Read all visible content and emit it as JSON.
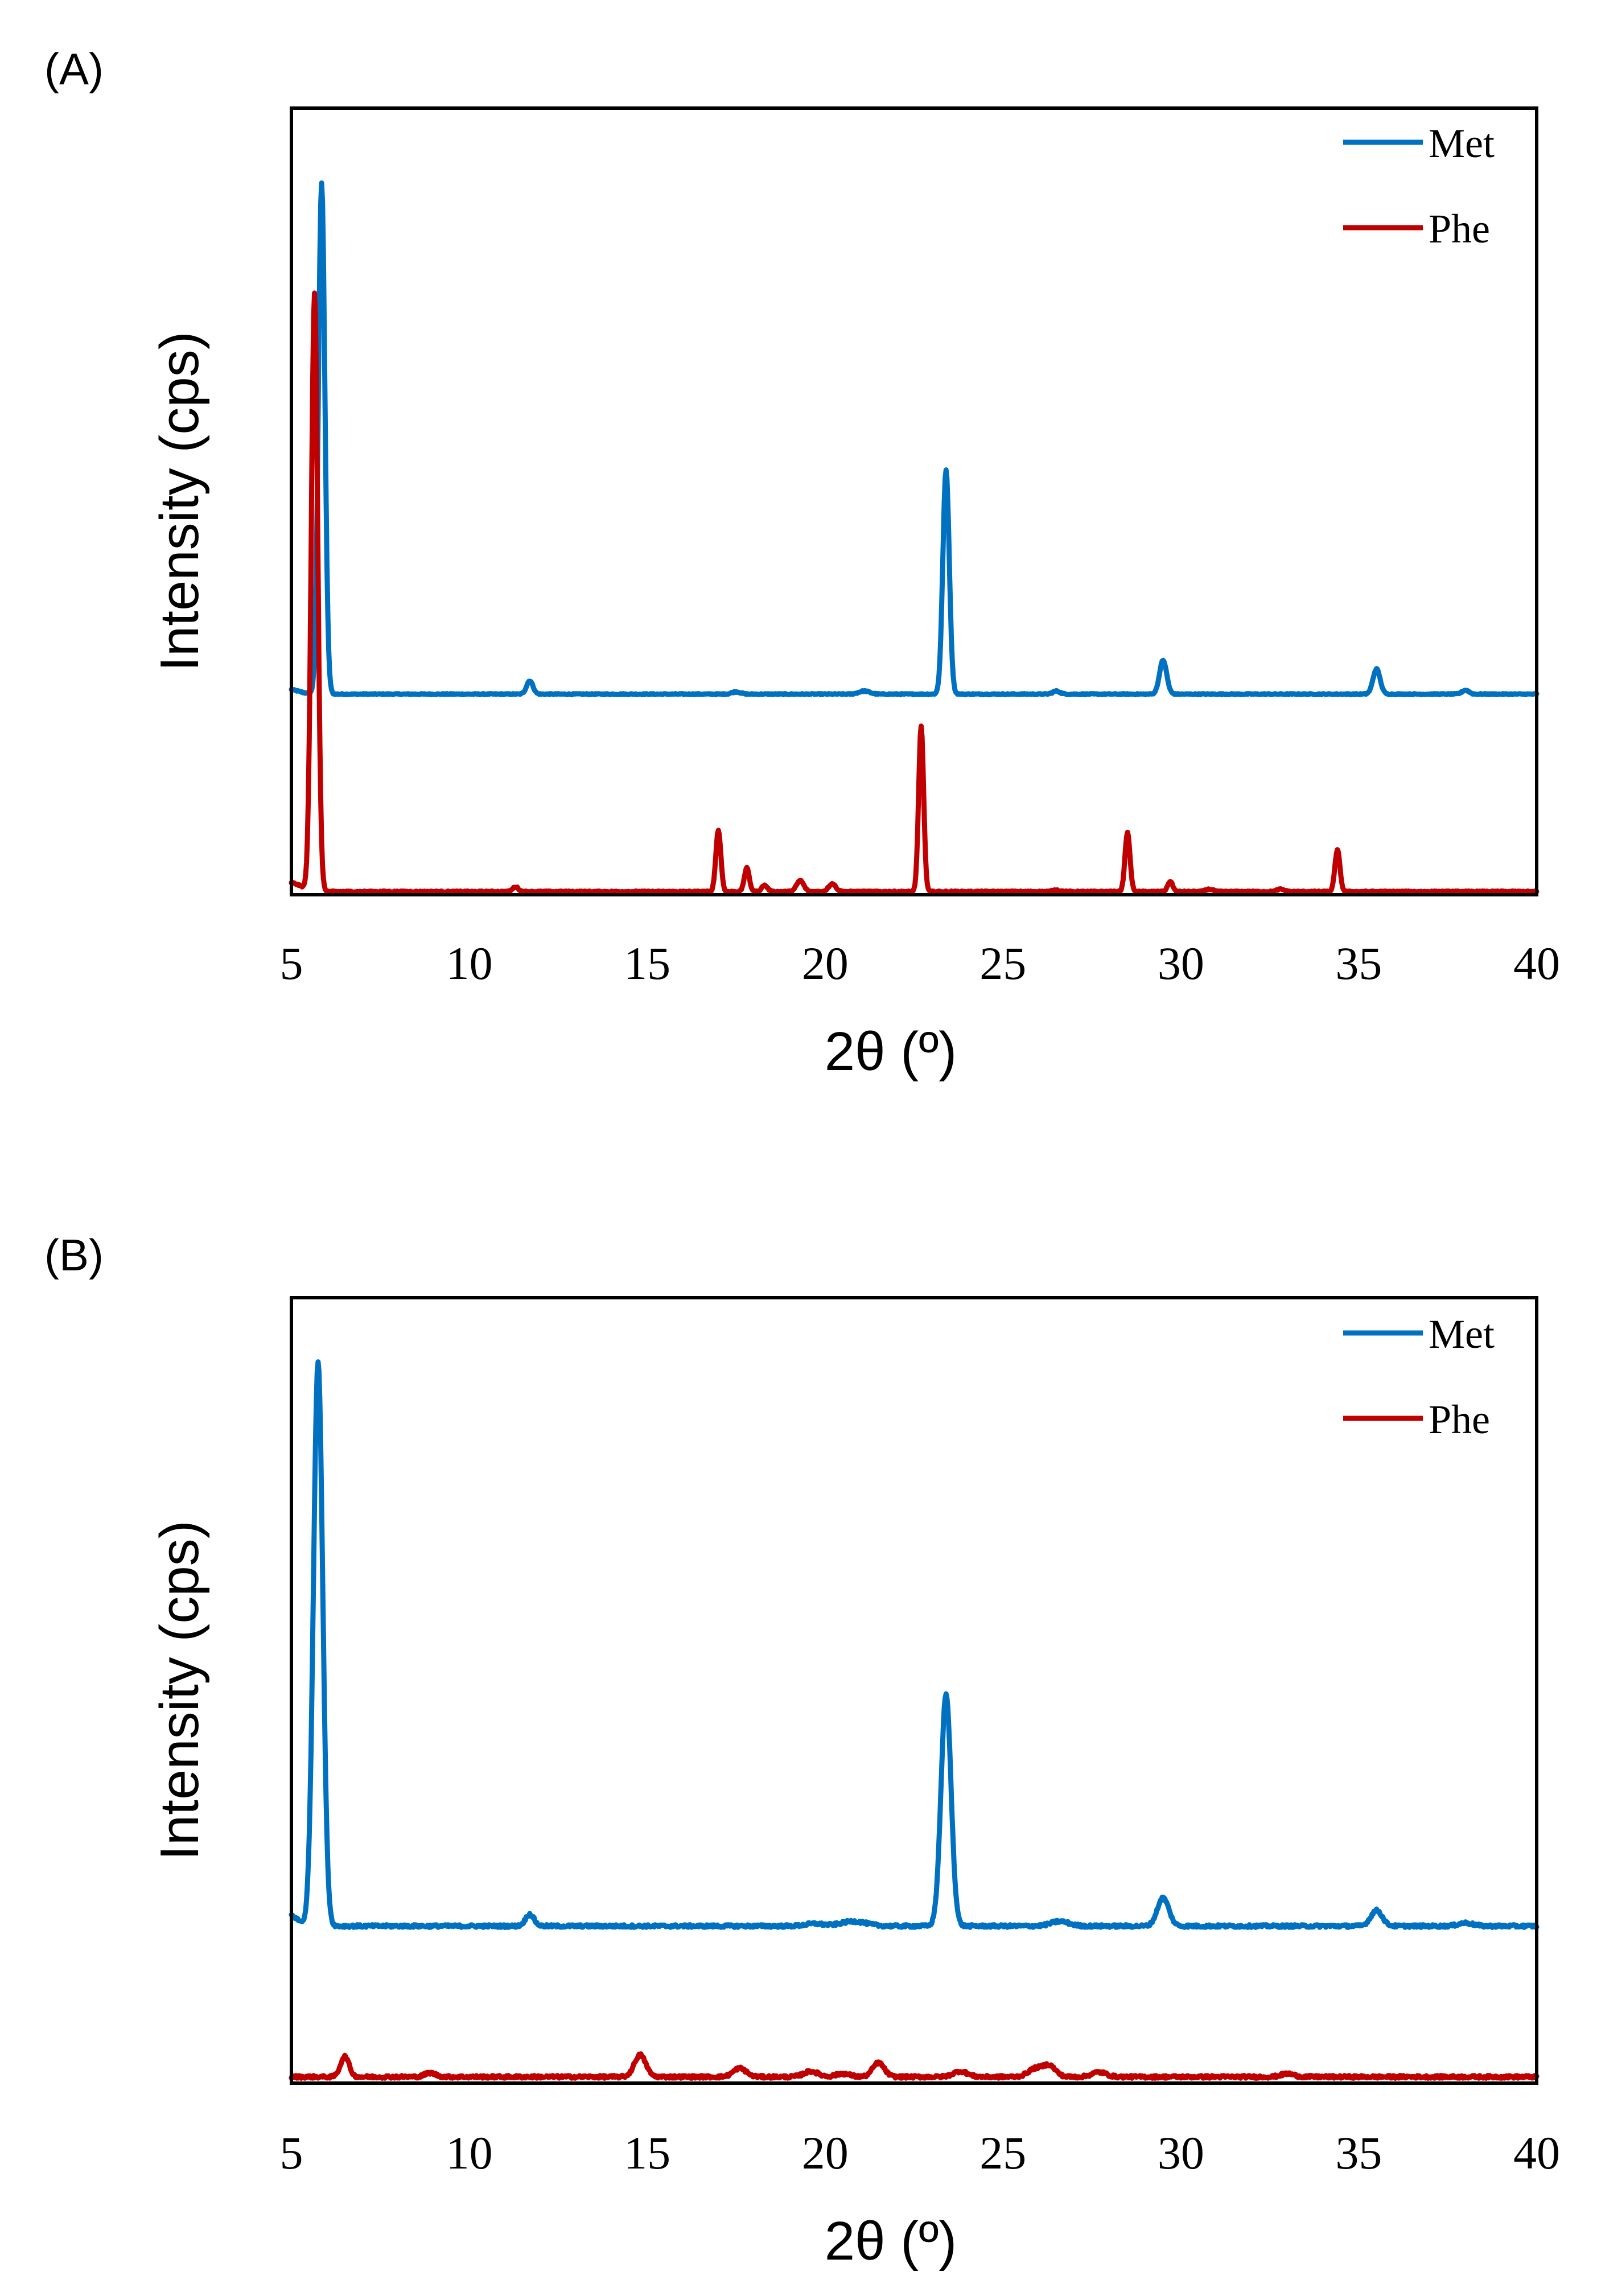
{
  "chart_data": [
    {
      "type": "line",
      "panel_label": "(A)",
      "xlabel": "2θ (º)",
      "ylabel": "Intensity (cps)",
      "xlim": [
        5,
        40
      ],
      "ylim": [
        0,
        100
      ],
      "xticks": [
        5,
        10,
        15,
        20,
        25,
        30,
        35,
        40
      ],
      "legend_position": "top-right",
      "series": [
        {
          "name": "Met",
          "color": "#0070C0",
          "baseline": 25.5,
          "peaks": [
            [
              4.9,
              0.6,
              0.3
            ],
            [
              5.85,
              65.0,
              0.09
            ],
            [
              11.7,
              1.7,
              0.09
            ],
            [
              17.5,
              0.3,
              0.12
            ],
            [
              21.1,
              0.4,
              0.15
            ],
            [
              23.4,
              28.5,
              0.09
            ],
            [
              26.5,
              0.4,
              0.1
            ],
            [
              29.5,
              4.3,
              0.1
            ],
            [
              35.5,
              3.2,
              0.1
            ],
            [
              38.0,
              0.5,
              0.1
            ]
          ]
        },
        {
          "name": "Phe",
          "color": "#C00000",
          "baseline": 0.4,
          "peaks": [
            [
              4.9,
              1.2,
              0.35
            ],
            [
              5.65,
              76.0,
              0.09
            ],
            [
              11.3,
              0.6,
              0.08
            ],
            [
              17.0,
              7.8,
              0.07
            ],
            [
              17.8,
              3.0,
              0.07
            ],
            [
              18.3,
              0.8,
              0.08
            ],
            [
              19.3,
              1.4,
              0.1
            ],
            [
              20.2,
              1.0,
              0.1
            ],
            [
              22.7,
              21.0,
              0.07
            ],
            [
              26.5,
              0.2,
              0.1
            ],
            [
              28.5,
              7.5,
              0.07
            ],
            [
              29.7,
              1.3,
              0.07
            ],
            [
              30.8,
              0.3,
              0.1
            ],
            [
              32.8,
              0.3,
              0.1
            ],
            [
              34.4,
              5.3,
              0.07
            ]
          ]
        }
      ]
    },
    {
      "type": "line",
      "panel_label": "(B)",
      "xlabel": "2θ (º)",
      "ylabel": "Intensity (cps)",
      "xlim": [
        5,
        40
      ],
      "ylim": [
        0,
        100
      ],
      "xticks": [
        5,
        10,
        15,
        20,
        25,
        30,
        35,
        40
      ],
      "legend_position": "top-right",
      "series": [
        {
          "name": "Met",
          "color": "#0070C0",
          "baseline": 20.0,
          "peaks": [
            [
              4.9,
              1.5,
              0.25
            ],
            [
              5.75,
              72.0,
              0.13
            ],
            [
              11.7,
              1.5,
              0.12
            ],
            [
              19.7,
              0.3,
              0.25
            ],
            [
              20.8,
              0.6,
              0.35
            ],
            [
              23.4,
              29.5,
              0.14
            ],
            [
              26.6,
              0.6,
              0.25
            ],
            [
              29.5,
              3.6,
              0.16
            ],
            [
              35.5,
              2.0,
              0.16
            ],
            [
              38.0,
              0.4,
              0.2
            ]
          ]
        },
        {
          "name": "Phe",
          "color": "#C00000",
          "baseline": 0.8,
          "peaks": [
            [
              6.5,
              2.6,
              0.12
            ],
            [
              8.9,
              0.5,
              0.15
            ],
            [
              14.8,
              2.8,
              0.16
            ],
            [
              17.6,
              1.1,
              0.18
            ],
            [
              19.6,
              0.7,
              0.2
            ],
            [
              20.5,
              0.4,
              0.2
            ],
            [
              21.5,
              1.8,
              0.16
            ],
            [
              23.8,
              0.7,
              0.2
            ],
            [
              25.9,
              1.0,
              0.2
            ],
            [
              26.3,
              1.4,
              0.18
            ],
            [
              27.7,
              0.6,
              0.2
            ],
            [
              33.0,
              0.4,
              0.18
            ]
          ]
        }
      ]
    }
  ]
}
